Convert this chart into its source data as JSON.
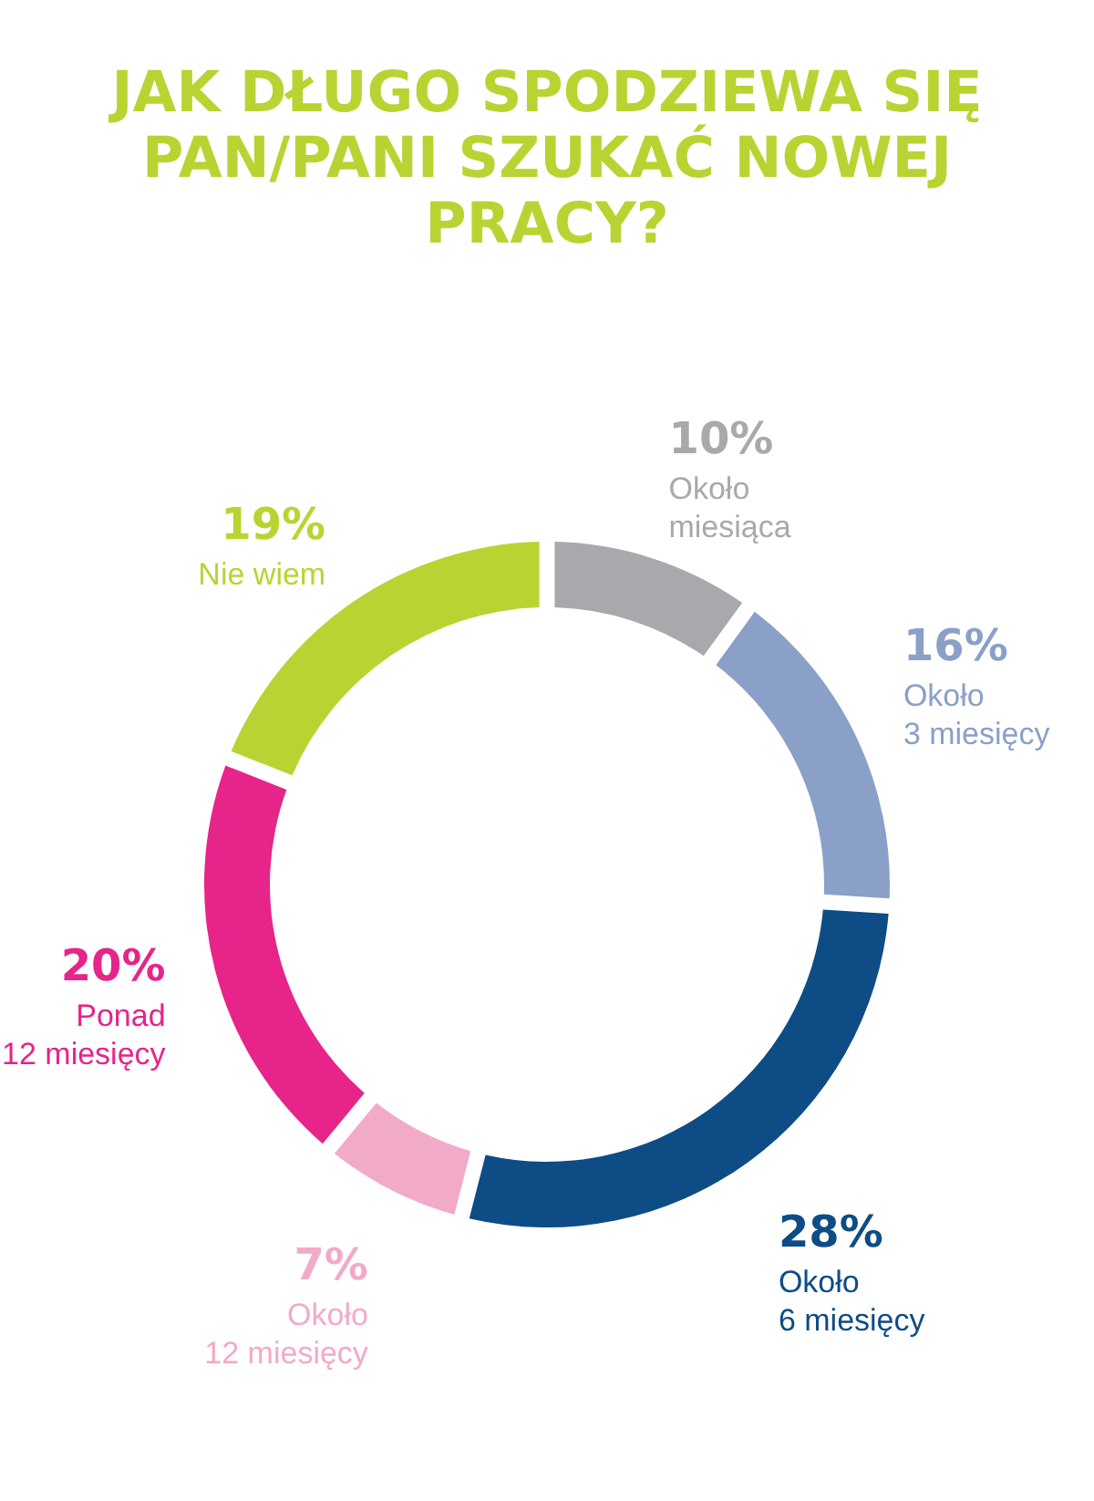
{
  "chart_data": {
    "type": "donut",
    "title": "JAK DŁUGO SPODZIEWA SIĘ PAN/PANI SZUKAĆ NOWEJ PRACY?",
    "categories": [
      "Około miesiąca",
      "Około 3 miesięcy",
      "Około 6 miesięcy",
      "Około 12 miesięcy",
      "Ponad 12 miesięcy",
      "Nie wiem"
    ],
    "values": [
      10,
      16,
      28,
      7,
      20,
      19
    ],
    "value_labels": [
      "10%",
      "16%",
      "28%",
      "7%",
      "20%",
      "19%"
    ],
    "colors": [
      "#a7a9ac",
      "#8aa0c8",
      "#0e4c85",
      "#f2aac9",
      "#e6248a",
      "#b8d432"
    ],
    "legend": false
  }
}
